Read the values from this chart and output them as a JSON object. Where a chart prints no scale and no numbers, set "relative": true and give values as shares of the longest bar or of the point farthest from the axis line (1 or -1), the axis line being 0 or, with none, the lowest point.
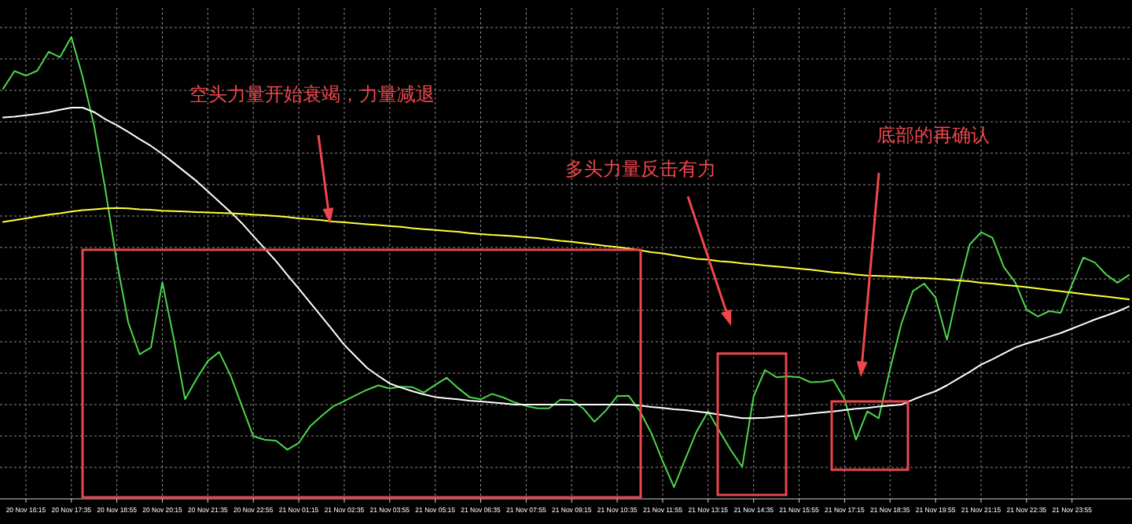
{
  "chart_data": {
    "type": "line",
    "relative": true,
    "grid": true,
    "categories": [
      null,
      null,
      "20 Nov 16:15",
      null,
      null,
      null,
      "20 Nov 17:35",
      null,
      null,
      null,
      "20 Nov 18:55",
      null,
      null,
      null,
      "20 Nov 20:15",
      null,
      null,
      null,
      "20 Nov 21:35",
      null,
      null,
      null,
      "20 Nov 22:55",
      null,
      null,
      null,
      "21 Nov 01:15",
      null,
      null,
      null,
      "21 Nov 02:35",
      null,
      null,
      null,
      "21 Nov 03:55",
      null,
      null,
      null,
      "21 Nov 05:15",
      null,
      null,
      null,
      "21 Nov 06:35",
      null,
      null,
      null,
      "21 Nov 07:55",
      null,
      null,
      null,
      "21 Nov 09:15",
      null,
      null,
      null,
      "21 Nov 10:35",
      null,
      null,
      null,
      "21 Nov 11:55",
      null,
      null,
      null,
      "21 Nov 13:15",
      null,
      null,
      null,
      "21 Nov 14:35",
      null,
      null,
      null,
      "21 Nov 15:55",
      null,
      null,
      null,
      "21 Nov 17:15",
      null,
      null,
      null,
      "21 Nov 18:35",
      null,
      null,
      null,
      "21 Nov 19:55",
      null,
      null,
      null,
      "21 Nov 21:15",
      null,
      null,
      null,
      "21 Nov 22:35",
      null,
      null,
      null,
      "21 Nov 23:55",
      null,
      null,
      null,
      null,
      null
    ],
    "series": [
      {
        "color": "#4cd64c",
        "values": [
          0.885,
          0.924,
          0.914,
          0.925,
          0.967,
          0.955,
          1.0,
          0.91,
          0.803,
          0.659,
          0.5,
          0.366,
          0.295,
          0.31,
          0.455,
          0.33,
          0.195,
          0.24,
          0.28,
          0.3,
          0.248,
          0.18,
          0.113,
          0.105,
          0.103,
          0.083,
          0.098,
          0.135,
          0.158,
          0.179,
          0.191,
          0.204,
          0.216,
          0.226,
          0.219,
          0.223,
          0.222,
          0.21,
          0.227,
          0.243,
          0.22,
          0.2,
          0.195,
          0.207,
          0.199,
          0.188,
          0.18,
          0.175,
          0.175,
          0.194,
          0.193,
          0.175,
          0.145,
          0.17,
          0.202,
          0.203,
          0.169,
          0.12,
          0.058,
          0.0,
          0.063,
          0.124,
          0.168,
          0.124,
          0.082,
          0.045,
          0.202,
          0.26,
          0.244,
          0.246,
          0.244,
          0.233,
          0.234,
          0.238,
          0.195,
          0.105,
          0.168,
          0.153,
          0.262,
          0.363,
          0.435,
          0.452,
          0.421,
          0.327,
          0.44,
          0.539,
          0.566,
          0.554,
          0.489,
          0.455,
          0.394,
          0.379,
          0.391,
          0.387,
          0.45,
          0.51,
          0.499,
          0.472,
          0.454,
          0.471
        ]
      },
      {
        "color": "#ffffff",
        "values": [
          0.821,
          0.823,
          0.826,
          0.829,
          0.833,
          0.838,
          0.843,
          0.843,
          0.833,
          0.817,
          0.804,
          0.789,
          0.773,
          0.758,
          0.74,
          0.72,
          0.7,
          0.68,
          0.657,
          0.634,
          0.611,
          0.586,
          0.558,
          0.53,
          0.502,
          0.471,
          0.441,
          0.41,
          0.379,
          0.348,
          0.316,
          0.29,
          0.265,
          0.247,
          0.23,
          0.221,
          0.213,
          0.206,
          0.2,
          0.197,
          0.195,
          0.192,
          0.19,
          0.188,
          0.186,
          0.183,
          0.183,
          0.183,
          0.183,
          0.183,
          0.183,
          0.183,
          0.183,
          0.183,
          0.183,
          0.183,
          0.181,
          0.178,
          0.176,
          0.173,
          0.171,
          0.168,
          0.165,
          0.161,
          0.157,
          0.153,
          0.153,
          0.154,
          0.156,
          0.158,
          0.16,
          0.163,
          0.166,
          0.168,
          0.171,
          0.174,
          0.176,
          0.179,
          0.181,
          0.183,
          0.194,
          0.204,
          0.213,
          0.226,
          0.241,
          0.256,
          0.272,
          0.284,
          0.297,
          0.31,
          0.319,
          0.326,
          0.334,
          0.342,
          0.352,
          0.362,
          0.372,
          0.381,
          0.39,
          0.401
        ]
      },
      {
        "color": "#ffff3c",
        "values": [
          0.589,
          0.593,
          0.597,
          0.601,
          0.605,
          0.608,
          0.612,
          0.615,
          0.617,
          0.619,
          0.62,
          0.619,
          0.617,
          0.616,
          0.614,
          0.613,
          0.612,
          0.611,
          0.61,
          0.609,
          0.608,
          0.607,
          0.605,
          0.604,
          0.602,
          0.6,
          0.597,
          0.595,
          0.593,
          0.59,
          0.588,
          0.586,
          0.584,
          0.582,
          0.58,
          0.578,
          0.575,
          0.573,
          0.571,
          0.569,
          0.567,
          0.564,
          0.562,
          0.56,
          0.559,
          0.557,
          0.555,
          0.553,
          0.55,
          0.547,
          0.545,
          0.542,
          0.539,
          0.536,
          0.533,
          0.53,
          0.526,
          0.522,
          0.519,
          0.515,
          0.511,
          0.507,
          0.505,
          0.502,
          0.5,
          0.497,
          0.495,
          0.492,
          0.49,
          0.488,
          0.485,
          0.483,
          0.48,
          0.477,
          0.475,
          0.472,
          0.47,
          0.469,
          0.468,
          0.467,
          0.465,
          0.464,
          0.463,
          0.461,
          0.459,
          0.457,
          0.454,
          0.452,
          0.449,
          0.447,
          0.444,
          0.441,
          0.438,
          0.435,
          0.432,
          0.429,
          0.426,
          0.423,
          0.42,
          0.417
        ]
      }
    ],
    "annotations": [
      "空头力量开始衰竭，力量减退",
      "多头力量反击有力",
      "底部的再确认"
    ]
  }
}
